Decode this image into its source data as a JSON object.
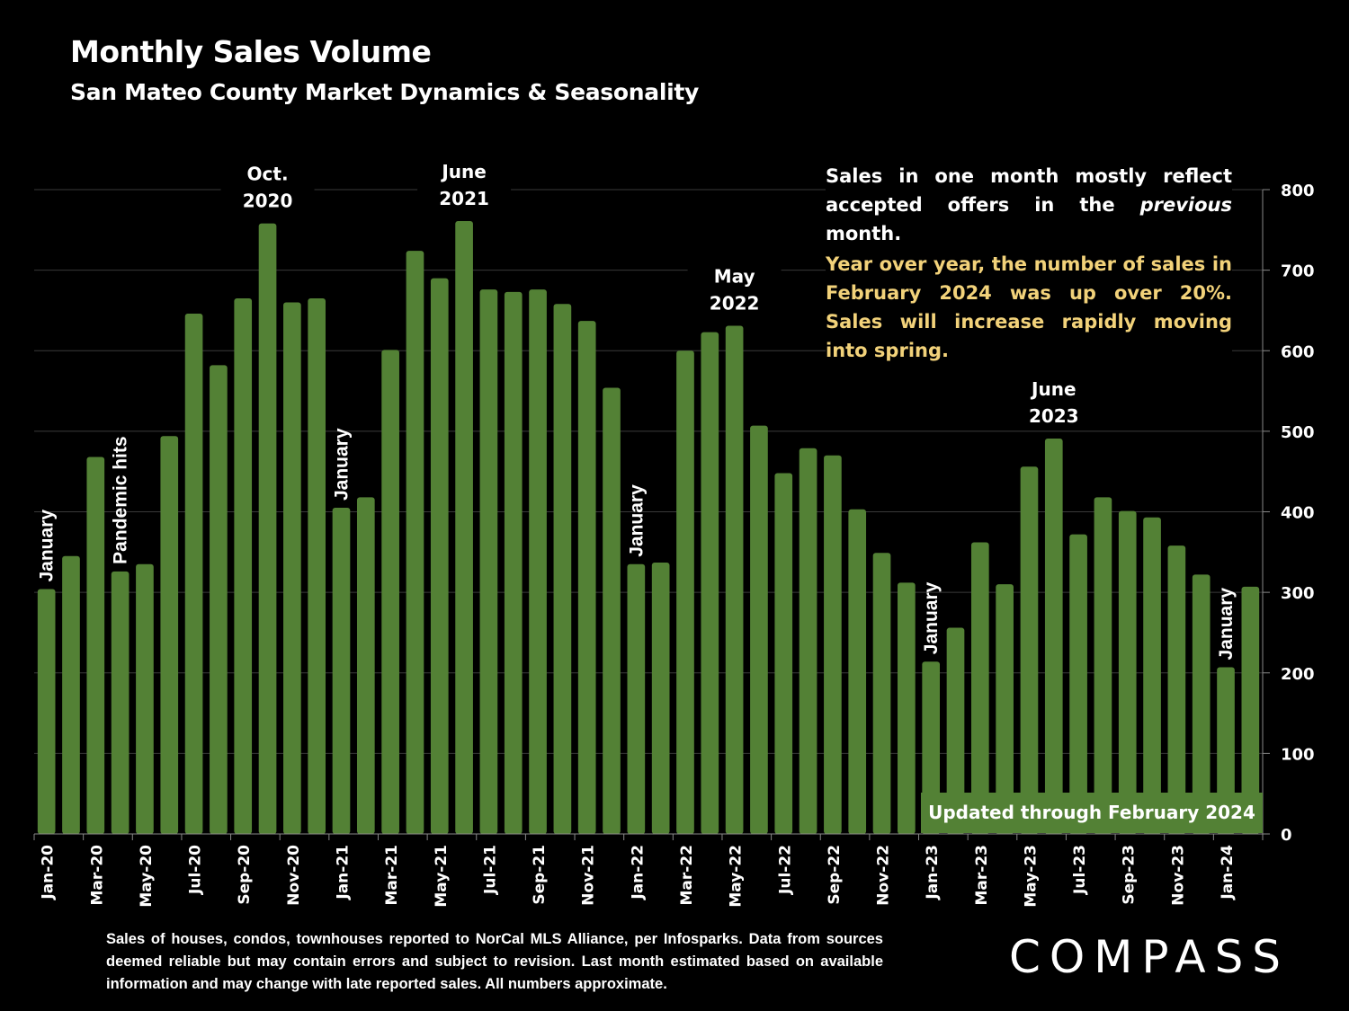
{
  "header": {
    "title": "Monthly Sales Volume",
    "subtitle": "San Mateo County Market Dynamics & Seasonality"
  },
  "notes": {
    "note1_pre": "Sales in one month mostly reflect accepted offers in the ",
    "note1_italic": "previous",
    "note1_post": " month.",
    "note2": "Year over year, the number of sales in February 2024 was up over 20%. Sales will increase rapidly moving into spring."
  },
  "updated_label": "Updated through February 2024",
  "footnote": "Sales of houses, condos, townhouses reported to NorCal MLS Alliance, per Infosparks. Data from sources deemed reliable but may contain errors and subject to revision. Last month estimated based on available information and may change with late reported sales. All numbers approximate.",
  "logo": "COMPASS",
  "colors": {
    "bar": "#538135",
    "background": "#000000",
    "highlight_text": "#f2d27a",
    "grid": "#3a3a3a"
  },
  "chart_data": {
    "type": "bar",
    "title": "Monthly Sales Volume",
    "subtitle": "San Mateo County Market Dynamics & Seasonality",
    "xlabel": "",
    "ylabel": "",
    "y_axis_side": "right",
    "ylim": [
      0,
      800
    ],
    "yticks": [
      0,
      100,
      200,
      300,
      400,
      500,
      600,
      700,
      800
    ],
    "grid": true,
    "categories": [
      "Jan-20",
      "Feb-20",
      "Mar-20",
      "Apr-20",
      "May-20",
      "Jun-20",
      "Jul-20",
      "Aug-20",
      "Sep-20",
      "Oct-20",
      "Nov-20",
      "Dec-20",
      "Jan-21",
      "Feb-21",
      "Mar-21",
      "Apr-21",
      "May-21",
      "Jun-21",
      "Jul-21",
      "Aug-21",
      "Sep-21",
      "Oct-21",
      "Nov-21",
      "Dec-21",
      "Jan-22",
      "Feb-22",
      "Mar-22",
      "Apr-22",
      "May-22",
      "Jun-22",
      "Jul-22",
      "Aug-22",
      "Sep-22",
      "Oct-22",
      "Nov-22",
      "Dec-22",
      "Jan-23",
      "Feb-23",
      "Mar-23",
      "Apr-23",
      "May-23",
      "Jun-23",
      "Jul-23",
      "Aug-23",
      "Sep-23",
      "Oct-23",
      "Nov-23",
      "Dec-23",
      "Jan-24",
      "Feb-24"
    ],
    "xtick_labels_every": 2,
    "values": [
      304,
      345,
      468,
      326,
      335,
      494,
      646,
      582,
      665,
      758,
      660,
      665,
      405,
      418,
      601,
      724,
      690,
      761,
      676,
      673,
      676,
      658,
      637,
      554,
      335,
      337,
      600,
      623,
      631,
      507,
      448,
      479,
      470,
      403,
      349,
      312,
      214,
      256,
      362,
      310,
      456,
      491,
      372,
      418,
      401,
      393,
      358,
      322,
      207,
      307
    ],
    "annotations": [
      {
        "index": 0,
        "text": "January",
        "orientation": "vertical"
      },
      {
        "index": 3,
        "text": "Pandemic hits",
        "orientation": "vertical"
      },
      {
        "index": 9,
        "text": "Oct.\n2020",
        "orientation": "horizontal"
      },
      {
        "index": 12,
        "text": "January",
        "orientation": "vertical"
      },
      {
        "index": 17,
        "text": "June\n2021",
        "orientation": "horizontal"
      },
      {
        "index": 24,
        "text": "January",
        "orientation": "vertical"
      },
      {
        "index": 28,
        "text": "May\n2022",
        "orientation": "horizontal"
      },
      {
        "index": 36,
        "text": "January",
        "orientation": "vertical"
      },
      {
        "index": 41,
        "text": "June\n2023",
        "orientation": "horizontal"
      },
      {
        "index": 48,
        "text": "January",
        "orientation": "vertical"
      }
    ]
  }
}
